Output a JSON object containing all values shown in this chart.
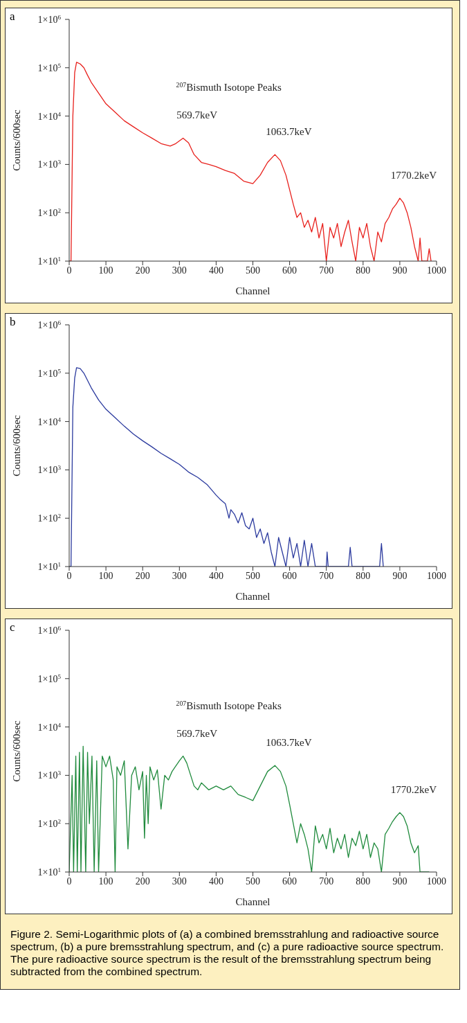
{
  "chart_data": [
    {
      "type": "line",
      "title": "a",
      "xlabel": "Channel",
      "ylabel": "Counts/600sec",
      "log": "y",
      "grid": false,
      "legend": false,
      "marker": "none",
      "xlim": [
        0,
        1000
      ],
      "xticks": [
        0,
        100,
        200,
        300,
        400,
        500,
        600,
        700,
        800,
        900,
        1000
      ],
      "ylim": [
        10,
        1000000
      ],
      "yticks": [
        {
          "value": 10,
          "label": "1×10$^{1}$"
        },
        {
          "value": 100,
          "label": "1×10$^{2}$"
        },
        {
          "value": 1000,
          "label": "1×10$^{3}$"
        },
        {
          "value": 10000,
          "label": "1×10$^{4}$"
        },
        {
          "value": 100000,
          "label": "1×10$^{5}$"
        },
        {
          "value": 1000000,
          "label": "1×10$^{6}$"
        }
      ],
      "annotations": [
        "$^{207}$Bismuth Isotope Peaks",
        {
          "text": "569.7keV",
          "x": 310,
          "y": 3500
        },
        {
          "text": "1063.7keV",
          "x": 560,
          "y": 1600
        },
        {
          "text": "1770.2keV",
          "x": 900,
          "y": 200
        }
      ],
      "series": [
        {
          "color": "#e8201c",
          "x": [
            0,
            5,
            10,
            15,
            20,
            30,
            40,
            50,
            60,
            80,
            100,
            125,
            150,
            175,
            200,
            225,
            250,
            275,
            290,
            310,
            325,
            340,
            360,
            380,
            400,
            425,
            450,
            475,
            500,
            520,
            540,
            560,
            575,
            590,
            600,
            610,
            620,
            630,
            640,
            650,
            660,
            670,
            680,
            690,
            700,
            710,
            720,
            730,
            740,
            750,
            760,
            770,
            780,
            790,
            800,
            810,
            820,
            830,
            840,
            850,
            860,
            870,
            880,
            890,
            900,
            910,
            920,
            930,
            940,
            950,
            955,
            960,
            975,
            980,
            985
          ],
          "values": [
            10,
            10,
            10000,
            80000,
            130000,
            120000,
            100000,
            70000,
            50000,
            30000,
            18000,
            12000,
            8000,
            6000,
            4500,
            3500,
            2700,
            2400,
            2700,
            3500,
            2800,
            1600,
            1100,
            1000,
            900,
            750,
            650,
            450,
            400,
            600,
            1100,
            1600,
            1200,
            600,
            300,
            150,
            80,
            100,
            50,
            70,
            40,
            80,
            30,
            60,
            10,
            50,
            30,
            60,
            20,
            40,
            70,
            25,
            10,
            50,
            30,
            60,
            20,
            10,
            40,
            25,
            60,
            80,
            120,
            150,
            200,
            160,
            100,
            50,
            20,
            10,
            30,
            10,
            10,
            18,
            10
          ]
        }
      ]
    },
    {
      "type": "line",
      "title": "b",
      "xlabel": "Channel",
      "ylabel": "Counts/600sec",
      "log": "y",
      "grid": false,
      "legend": false,
      "marker": "none",
      "xlim": [
        0,
        1000
      ],
      "xticks": [
        0,
        100,
        200,
        300,
        400,
        500,
        600,
        700,
        800,
        900,
        1000
      ],
      "ylim": [
        10,
        1000000
      ],
      "yticks": [
        {
          "value": 10,
          "label": "1×10$^{1}$"
        },
        {
          "value": 100,
          "label": "1×10$^{2}$"
        },
        {
          "value": 1000,
          "label": "1×10$^{3}$"
        },
        {
          "value": 10000,
          "label": "1×10$^{4}$"
        },
        {
          "value": 100000,
          "label": "1×10$^{5}$"
        },
        {
          "value": 1000000,
          "label": "1×10$^{6}$"
        }
      ],
      "series": [
        {
          "color": "#2b3a9e",
          "x": [
            0,
            5,
            10,
            15,
            20,
            30,
            40,
            60,
            80,
            100,
            125,
            150,
            175,
            200,
            225,
            250,
            275,
            300,
            325,
            350,
            375,
            400,
            410,
            425,
            435,
            440,
            450,
            460,
            470,
            480,
            490,
            500,
            510,
            520,
            530,
            540,
            550,
            560,
            570,
            580,
            590,
            600,
            610,
            620,
            630,
            640,
            650,
            660,
            670,
            700,
            702,
            705,
            760,
            765,
            770,
            845,
            850,
            855
          ],
          "values": [
            10,
            10,
            20000,
            80000,
            130000,
            125000,
            100000,
            50000,
            28000,
            18000,
            12000,
            8000,
            5500,
            4000,
            3000,
            2200,
            1700,
            1300,
            900,
            700,
            500,
            300,
            250,
            200,
            100,
            150,
            120,
            80,
            130,
            70,
            60,
            100,
            40,
            60,
            30,
            50,
            20,
            10,
            40,
            20,
            10,
            40,
            15,
            30,
            10,
            35,
            10,
            30,
            10,
            10,
            20,
            10,
            10,
            25,
            10,
            10,
            30,
            10
          ]
        }
      ]
    },
    {
      "type": "line",
      "title": "c",
      "xlabel": "Channel",
      "ylabel": "Counts/600sec",
      "log": "y",
      "grid": false,
      "legend": false,
      "marker": "none",
      "xlim": [
        0,
        1000
      ],
      "xticks": [
        0,
        100,
        200,
        300,
        400,
        500,
        600,
        700,
        800,
        900,
        1000
      ],
      "ylim": [
        10,
        1000000
      ],
      "yticks": [
        {
          "value": 10,
          "label": "1×10$^{1}$"
        },
        {
          "value": 100,
          "label": "1×10$^{2}$"
        },
        {
          "value": 1000,
          "label": "1×10$^{3}$"
        },
        {
          "value": 10000,
          "label": "1×10$^{4}$"
        },
        {
          "value": 100000,
          "label": "1×10$^{5}$"
        },
        {
          "value": 1000000,
          "label": "1×10$^{6}$"
        }
      ],
      "annotations": [
        "$^{207}$Bismuth Isotope Peaks",
        {
          "text": "569.7keV",
          "x": 310,
          "y": 2500
        },
        {
          "text": "1063.7keV",
          "x": 560,
          "y": 1600
        },
        {
          "text": "1770.2keV",
          "x": 900,
          "y": 170
        },
        "Figure 2. Semi-Logarithmic plots of (a) a combined bremsstrahlung and radioactive source spectrum, (b) a pure bremsstrahlung spectrum, and (c) a pure radioactive source spectrum. The pure radioactive source spectrum is the result of the bremsstrahlung spectrum being subtracted from the combined spectrum."
      ],
      "series": [
        {
          "color": "#1f8a3c",
          "x": [
            0,
            8,
            12,
            18,
            22,
            28,
            32,
            38,
            45,
            50,
            55,
            62,
            68,
            75,
            80,
            90,
            100,
            110,
            120,
            125,
            130,
            140,
            150,
            160,
            170,
            180,
            190,
            200,
            205,
            210,
            215,
            220,
            230,
            240,
            250,
            260,
            270,
            280,
            300,
            310,
            320,
            340,
            350,
            360,
            380,
            400,
            420,
            440,
            460,
            480,
            500,
            520,
            540,
            560,
            575,
            590,
            600,
            610,
            620,
            630,
            640,
            650,
            660,
            670,
            680,
            690,
            700,
            710,
            720,
            730,
            740,
            750,
            760,
            770,
            780,
            790,
            800,
            810,
            820,
            830,
            840,
            850,
            860,
            870,
            880,
            890,
            900,
            910,
            920,
            930,
            940,
            950,
            955,
            965,
            980
          ],
          "values": [
            10,
            1000,
            10,
            2500,
            10,
            3000,
            10,
            4000,
            10,
            3000,
            100,
            2500,
            10,
            2000,
            10,
            2500,
            1500,
            2500,
            800,
            10,
            1500,
            1000,
            2000,
            30,
            1000,
            1500,
            500,
            1200,
            50,
            1000,
            100,
            1500,
            800,
            1300,
            200,
            1000,
            800,
            1200,
            2000,
            2500,
            1800,
            600,
            500,
            700,
            500,
            600,
            500,
            600,
            400,
            350,
            300,
            600,
            1200,
            1600,
            1200,
            600,
            250,
            100,
            40,
            100,
            60,
            30,
            10,
            90,
            40,
            60,
            30,
            80,
            25,
            50,
            30,
            60,
            20,
            50,
            35,
            70,
            30,
            60,
            20,
            40,
            30,
            10,
            60,
            80,
            110,
            140,
            170,
            140,
            90,
            40,
            25,
            35,
            10,
            10,
            10
          ]
        }
      ]
    }
  ]
}
